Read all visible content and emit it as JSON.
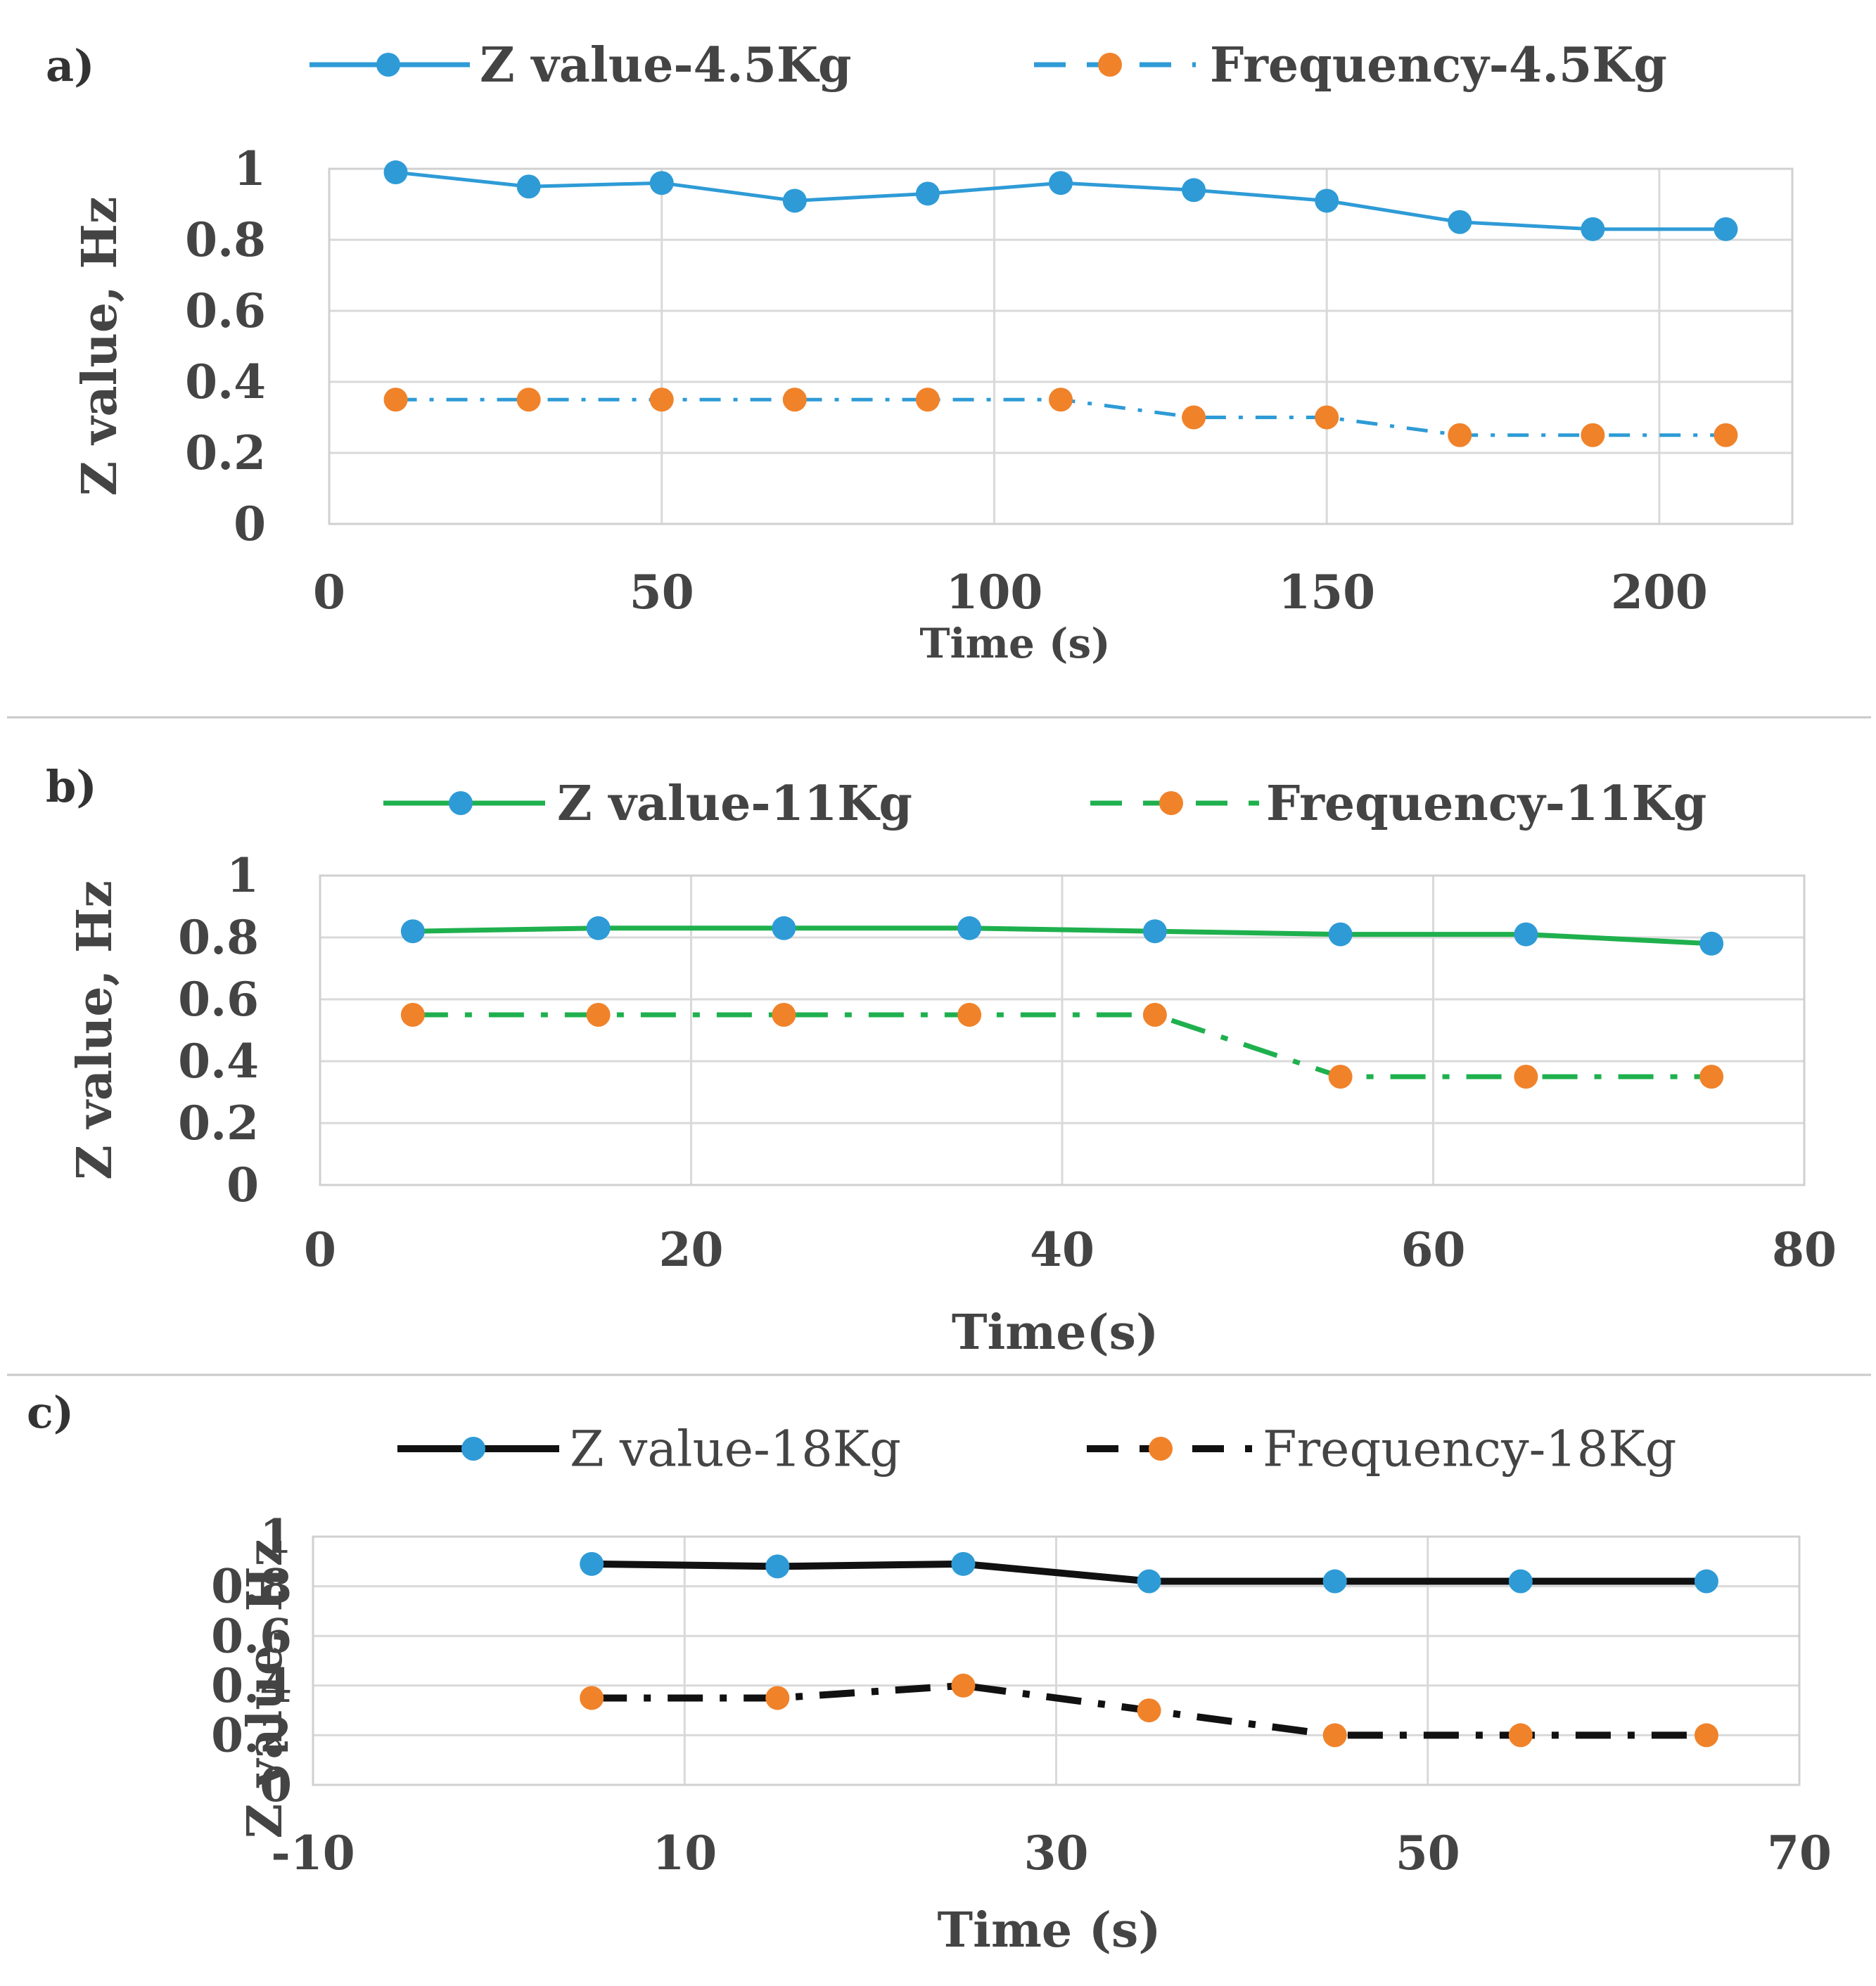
{
  "chart_data": [
    {
      "panel_label": "a)",
      "type": "line",
      "xlabel": "Time (s)",
      "ylabel": "Z value, Hz",
      "xlim": [
        0,
        220
      ],
      "ylim": [
        0,
        1
      ],
      "xticks": [
        0,
        50,
        100,
        150,
        200
      ],
      "xtick_labels": [
        "0",
        "50",
        "100",
        "150",
        "200"
      ],
      "yticks": [
        0,
        0.2,
        0.4,
        0.6,
        0.8,
        1
      ],
      "ytick_labels": [
        "0",
        "0.2",
        "0.4",
        "0.6",
        "0.8",
        "1"
      ],
      "x_gridlines": true,
      "y_gridlines": true,
      "legend_position": "top",
      "line_color": "#2e9bd6",
      "marker_colors": {
        "z": "#2e9bd6",
        "freq": "#f0822a"
      },
      "series": [
        {
          "name": "Z value-4.5Kg",
          "style": "solid",
          "x": [
            10,
            30,
            50,
            70,
            90,
            110,
            130,
            150,
            170,
            190,
            210
          ],
          "y": [
            0.99,
            0.95,
            0.96,
            0.91,
            0.93,
            0.96,
            0.94,
            0.91,
            0.85,
            0.83,
            0.83
          ]
        },
        {
          "name": "Frequency-4.5Kg",
          "style": "dash-dot",
          "x": [
            10,
            30,
            50,
            70,
            90,
            110,
            130,
            150,
            170,
            190,
            210
          ],
          "y": [
            0.35,
            0.35,
            0.35,
            0.35,
            0.35,
            0.35,
            0.3,
            0.3,
            0.25,
            0.25,
            0.25
          ]
        }
      ]
    },
    {
      "panel_label": "b)",
      "type": "line",
      "xlabel": "Time(s)",
      "ylabel": "Z value, Hz",
      "xlim": [
        0,
        80
      ],
      "ylim": [
        0,
        1
      ],
      "xticks": [
        0,
        20,
        40,
        60,
        80
      ],
      "xtick_labels": [
        "0",
        "20",
        "40",
        "60",
        "80"
      ],
      "yticks": [
        0,
        0.2,
        0.4,
        0.6,
        0.8,
        1
      ],
      "ytick_labels": [
        "0",
        "0.2",
        "0.4",
        "0.6",
        "0.8",
        "1"
      ],
      "x_gridlines": true,
      "y_gridlines": true,
      "legend_position": "top",
      "line_color": "#1fb04e",
      "marker_colors": {
        "z": "#2e9bd6",
        "freq": "#f0822a"
      },
      "series": [
        {
          "name": "Z value-11Kg",
          "style": "solid",
          "x": [
            5,
            15,
            25,
            35,
            45,
            55,
            65,
            75
          ],
          "y": [
            0.82,
            0.83,
            0.83,
            0.83,
            0.82,
            0.81,
            0.81,
            0.78
          ]
        },
        {
          "name": "Frequency-11Kg",
          "style": "dash-dot",
          "x": [
            5,
            15,
            25,
            35,
            45,
            55,
            65,
            75
          ],
          "y": [
            0.55,
            0.55,
            0.55,
            0.55,
            0.55,
            0.35,
            0.35,
            0.35
          ]
        }
      ]
    },
    {
      "panel_label": "c)",
      "type": "line",
      "xlabel": "Time (s)",
      "ylabel": "Z value, Hz",
      "xlim": [
        -10,
        70
      ],
      "ylim": [
        0,
        1
      ],
      "xticks": [
        -10,
        10,
        30,
        50,
        70
      ],
      "xtick_labels": [
        "-10",
        "10",
        "30",
        "50",
        "70"
      ],
      "yticks": [
        0,
        0.2,
        0.4,
        0.6,
        0.8,
        1
      ],
      "ytick_labels": [
        "0",
        "0.2",
        "0.4",
        "0.6",
        "0.8",
        "1"
      ],
      "x_gridlines": true,
      "y_gridlines": true,
      "legend_position": "top",
      "line_color": "#111111",
      "marker_colors": {
        "z": "#2e9bd6",
        "freq": "#f0822a"
      },
      "series": [
        {
          "name": "Z value-18Kg",
          "style": "solid",
          "x": [
            5,
            15,
            25,
            35,
            45,
            55,
            65
          ],
          "y": [
            0.89,
            0.88,
            0.89,
            0.82,
            0.82,
            0.82,
            0.82
          ]
        },
        {
          "name": "Frequency-18Kg",
          "style": "dash-dot",
          "x": [
            5,
            15,
            25,
            35,
            45,
            55,
            65
          ],
          "y": [
            0.35,
            0.35,
            0.4,
            0.3,
            0.2,
            0.2,
            0.2
          ]
        }
      ]
    }
  ]
}
